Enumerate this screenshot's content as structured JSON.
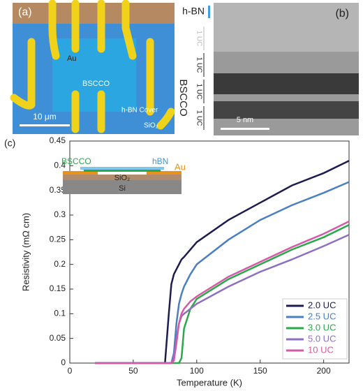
{
  "panel_a": {
    "label": "(a)",
    "au": "Au",
    "bscco": "BSCCO",
    "cover": "h-BN Cover",
    "sio2": "SiO₂",
    "scale_bar": "10 μm"
  },
  "panel_b": {
    "label": "(b)",
    "hbn": "h-BN",
    "bscco": "BSCCO",
    "uc_labels": [
      "1 UC",
      "1 UC",
      "1 UC",
      "1 UC"
    ],
    "scale_bar": "5 nm"
  },
  "chart_data": {
    "type": "line",
    "panel_label": "(c)",
    "x_label": "Temperature (K)",
    "y_label": "Resistivity (mΩ cm)",
    "xlim": [
      0,
      220
    ],
    "ylim": [
      0,
      0.45
    ],
    "xticks": [
      0,
      50,
      100,
      150,
      200
    ],
    "yticks": [
      0,
      0.05,
      0.1,
      0.15,
      0.2,
      0.25,
      0.3,
      0.35,
      0.4,
      0.45
    ],
    "legend": "lower right",
    "x": [
      20,
      75,
      78,
      80,
      82,
      84,
      86,
      88,
      90,
      95,
      100,
      125,
      150,
      175,
      200,
      220
    ],
    "series": [
      {
        "name": "2.0 UC",
        "color": "#1c1c4e",
        "values": [
          0,
          0,
          0.1,
          0.16,
          0.18,
          0.19,
          0.2,
          0.21,
          0.215,
          0.23,
          0.245,
          0.29,
          0.325,
          0.36,
          0.385,
          0.41
        ]
      },
      {
        "name": "2.5 UC",
        "color": "#4a7fc0",
        "values": [
          0,
          0,
          0,
          0,
          0.02,
          0.08,
          0.12,
          0.14,
          0.155,
          0.18,
          0.2,
          0.25,
          0.29,
          0.32,
          0.345,
          0.367
        ]
      },
      {
        "name": "3.0 UC",
        "color": "#2aa84a",
        "values": [
          0,
          0,
          0,
          0,
          0,
          0,
          0,
          0.01,
          0.07,
          0.11,
          0.13,
          0.17,
          0.2,
          0.23,
          0.255,
          0.28
        ]
      },
      {
        "name": "5.0 UC",
        "color": "#8e6fbf",
        "values": [
          0,
          0,
          0,
          0,
          0.01,
          0.05,
          0.08,
          0.095,
          0.1,
          0.11,
          0.12,
          0.155,
          0.185,
          0.21,
          0.237,
          0.26
        ]
      },
      {
        "name": "10 UC",
        "color": "#d35aa6",
        "values": [
          0,
          0,
          0,
          0,
          0.005,
          0.04,
          0.08,
          0.1,
          0.11,
          0.125,
          0.135,
          0.175,
          0.205,
          0.235,
          0.262,
          0.287
        ]
      }
    ],
    "inset": {
      "bscco": "BSCCO",
      "hbn": "hBN",
      "au": "Au",
      "sio2": "SiO₂",
      "si": "Si"
    }
  }
}
